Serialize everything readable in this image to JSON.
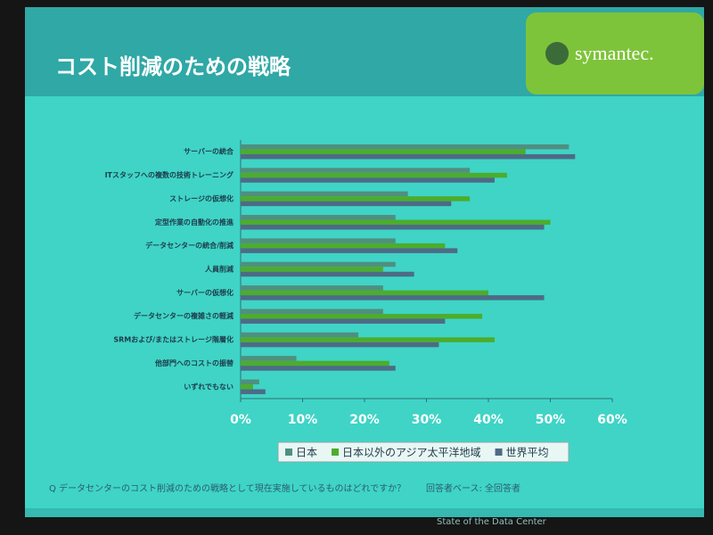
{
  "header": {
    "title": "コスト削減のための戦略",
    "logo": "symantec.",
    "footer": "State of the Data Center"
  },
  "chart_data": {
    "type": "bar",
    "orientation": "horizontal",
    "categories": [
      "サーバーの統合",
      "ITスタッフへの複数の技術トレーニング",
      "ストレージの仮想化",
      "定型作業の自動化の推進",
      "データセンターの統合/削減",
      "人員削減",
      "サーバーの仮想化",
      "データセンターの複雑さの軽減",
      "SRMおよび/またはストレージ階層化",
      "他部門へのコストの振替",
      "いずれでもない"
    ],
    "series": [
      {
        "name": "日本",
        "color": "#4f8f80",
        "values": [
          53,
          37,
          27,
          25,
          25,
          25,
          23,
          23,
          19,
          9,
          3
        ]
      },
      {
        "name": "日本以外のアジア太平洋地域",
        "color": "#4cad2c",
        "values": [
          46,
          43,
          37,
          50,
          33,
          23,
          40,
          39,
          41,
          24,
          2
        ]
      },
      {
        "name": "世界平均",
        "color": "#4d6b86",
        "values": [
          54,
          41,
          34,
          49,
          35,
          28,
          49,
          33,
          32,
          25,
          4
        ]
      }
    ],
    "xlim": [
      0,
      60
    ],
    "xticks": [
      {
        "value": 0,
        "label": "0%"
      },
      {
        "value": 10,
        "label": "10%"
      },
      {
        "value": 20,
        "label": "20%"
      },
      {
        "value": 30,
        "label": "30%"
      },
      {
        "value": 40,
        "label": "40%"
      },
      {
        "value": 50,
        "label": "50%"
      },
      {
        "value": 60,
        "label": "60%"
      }
    ],
    "legend": "bottom",
    "question": "Q データセンターのコスト削減のための戦略として現在実施しているものはどれですか？",
    "base": "回答者ベース: 全回答者"
  }
}
